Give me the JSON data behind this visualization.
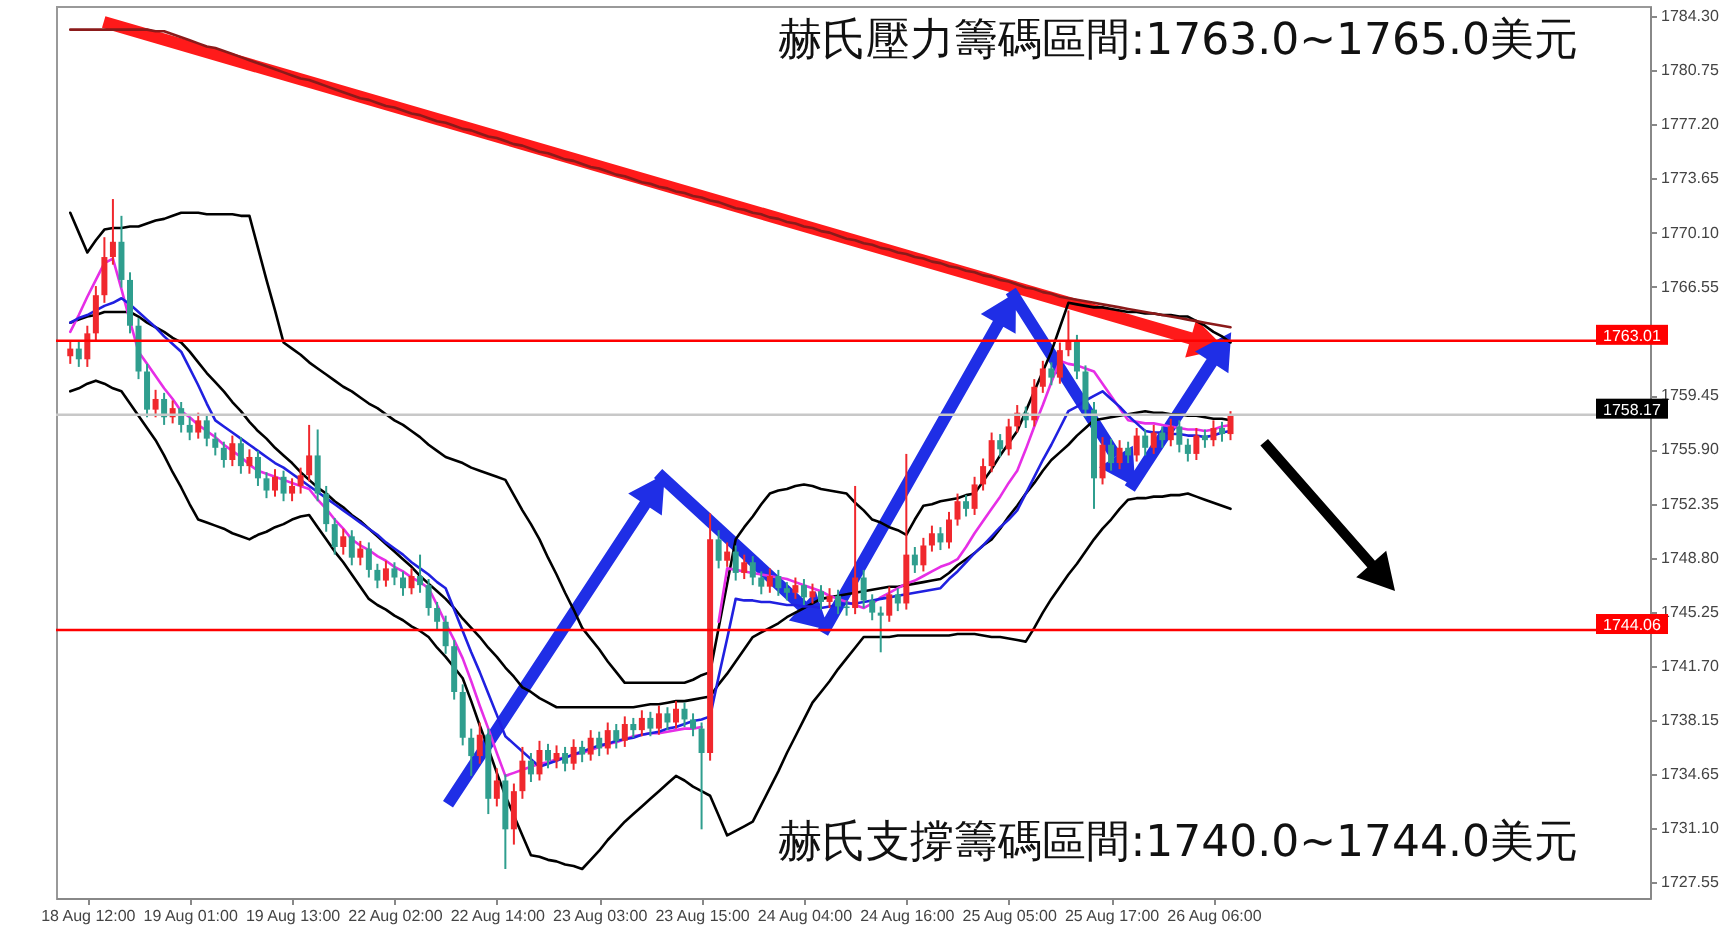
{
  "chart_data": {
    "type": "candlestick",
    "annotations": [
      "赫氏壓力籌碼區間:1763.0~1765.0美元",
      "赫氏支撐籌碼區間:1740.0~1744.0美元"
    ],
    "categories": [
      null,
      null,
      "18 Aug 12:00",
      null,
      null,
      null,
      null,
      null,
      null,
      null,
      null,
      null,
      null,
      null,
      "19 Aug 01:00",
      null,
      null,
      null,
      null,
      null,
      null,
      null,
      null,
      null,
      null,
      null,
      "19 Aug 13:00",
      null,
      null,
      null,
      null,
      null,
      null,
      null,
      null,
      null,
      null,
      null,
      "22 Aug 02:00",
      null,
      null,
      null,
      null,
      null,
      null,
      null,
      null,
      null,
      null,
      null,
      "22 Aug 14:00",
      null,
      null,
      null,
      null,
      null,
      null,
      null,
      null,
      null,
      null,
      null,
      "23 Aug 03:00",
      null,
      null,
      null,
      null,
      null,
      null,
      null,
      null,
      null,
      null,
      null,
      "23 Aug 15:00",
      null,
      null,
      null,
      null,
      null,
      null,
      null,
      null,
      null,
      null,
      null,
      "24 Aug 04:00",
      null,
      null,
      null,
      null,
      null,
      null,
      null,
      null,
      null,
      null,
      null,
      "24 Aug 16:00",
      null,
      null,
      null,
      null,
      null,
      null,
      null,
      null,
      null,
      null,
      null,
      "25 Aug 05:00",
      null,
      null,
      null,
      null,
      null,
      null,
      null,
      null,
      null,
      null,
      null,
      "25 Aug 17:00",
      null,
      null,
      null,
      null,
      null,
      null,
      null,
      null,
      null,
      null,
      null,
      "26 Aug 06:00",
      null,
      null
    ],
    "ohlc": [
      [
        1762.0,
        1763.0,
        1761.5,
        1762.5
      ],
      [
        1762.5,
        1763.0,
        1761.3,
        1761.8
      ],
      [
        1761.8,
        1764.0,
        1761.3,
        1763.5
      ],
      [
        1763.5,
        1766.6,
        1763.0,
        1766.0
      ],
      [
        1766.0,
        1769.8,
        1765.5,
        1768.5
      ],
      [
        1768.5,
        1772.3,
        1768.0,
        1769.5
      ],
      [
        1769.5,
        1771.2,
        1766.5,
        1767.0
      ],
      [
        1767.0,
        1767.5,
        1763.5,
        1764.0
      ],
      [
        1764.0,
        1764.5,
        1760.5,
        1761.0
      ],
      [
        1761.0,
        1761.5,
        1758.0,
        1758.5
      ],
      [
        1758.5,
        1759.8,
        1758.0,
        1759.2
      ],
      [
        1759.2,
        1759.6,
        1757.5,
        1758.0
      ],
      [
        1758.0,
        1759.1,
        1757.6,
        1758.6
      ],
      [
        1758.6,
        1759.0,
        1757.0,
        1757.5
      ],
      [
        1757.5,
        1758.0,
        1756.5,
        1757.0
      ],
      [
        1757.0,
        1758.3,
        1756.6,
        1757.8
      ],
      [
        1757.8,
        1758.2,
        1756.1,
        1756.6
      ],
      [
        1756.6,
        1757.0,
        1755.5,
        1756.0
      ],
      [
        1756.0,
        1756.4,
        1754.7,
        1755.2
      ],
      [
        1755.2,
        1756.8,
        1754.8,
        1756.3
      ],
      [
        1756.3,
        1756.7,
        1754.3,
        1754.8
      ],
      [
        1754.8,
        1755.9,
        1754.3,
        1755.4
      ],
      [
        1755.4,
        1755.8,
        1753.5,
        1754.0
      ],
      [
        1754.0,
        1754.4,
        1752.7,
        1753.2
      ],
      [
        1753.2,
        1754.6,
        1752.8,
        1754.1
      ],
      [
        1754.1,
        1754.5,
        1752.5,
        1753.0
      ],
      [
        1753.0,
        1754.0,
        1752.5,
        1753.5
      ],
      [
        1753.5,
        1754.7,
        1753.0,
        1754.2
      ],
      [
        1754.2,
        1757.5,
        1753.8,
        1755.5
      ],
      [
        1755.5,
        1757.2,
        1752.5,
        1753.0
      ],
      [
        1753.0,
        1753.5,
        1750.5,
        1751.0
      ],
      [
        1751.0,
        1751.4,
        1749.0,
        1749.5
      ],
      [
        1749.5,
        1750.7,
        1749.0,
        1750.2
      ],
      [
        1750.2,
        1750.6,
        1748.3,
        1748.8
      ],
      [
        1748.8,
        1749.9,
        1748.3,
        1749.4
      ],
      [
        1749.4,
        1749.8,
        1747.5,
        1748.0
      ],
      [
        1748.0,
        1748.4,
        1746.8,
        1747.3
      ],
      [
        1747.3,
        1748.6,
        1746.9,
        1748.1
      ],
      [
        1748.1,
        1748.5,
        1747.0,
        1747.5
      ],
      [
        1747.5,
        1747.9,
        1746.3,
        1746.8
      ],
      [
        1746.8,
        1748.1,
        1746.4,
        1747.6
      ],
      [
        1747.6,
        1749.0,
        1746.5,
        1747.0
      ],
      [
        1747.0,
        1747.4,
        1745.0,
        1745.5
      ],
      [
        1745.5,
        1745.9,
        1744.1,
        1744.6
      ],
      [
        1744.6,
        1745.0,
        1742.5,
        1743.0
      ],
      [
        1743.0,
        1743.4,
        1739.5,
        1740.0
      ],
      [
        1740.0,
        1740.5,
        1736.5,
        1737.0
      ],
      [
        1737.0,
        1737.6,
        1734.5,
        1735.8
      ],
      [
        1735.8,
        1738.0,
        1735.3,
        1737.2
      ],
      [
        1737.2,
        1737.6,
        1732.0,
        1733.0
      ],
      [
        1733.0,
        1735.0,
        1732.5,
        1734.2
      ],
      [
        1734.2,
        1734.6,
        1728.4,
        1731.0
      ],
      [
        1731.0,
        1734.0,
        1730.0,
        1733.5
      ],
      [
        1733.5,
        1736.4,
        1733.0,
        1735.5
      ],
      [
        1735.5,
        1736.0,
        1734.1,
        1734.6
      ],
      [
        1734.6,
        1736.8,
        1734.2,
        1736.2
      ],
      [
        1736.2,
        1736.6,
        1735.0,
        1735.5
      ],
      [
        1735.5,
        1736.5,
        1735.0,
        1736.0
      ],
      [
        1736.0,
        1736.4,
        1734.8,
        1735.3
      ],
      [
        1735.3,
        1736.9,
        1734.9,
        1736.4
      ],
      [
        1736.4,
        1736.8,
        1735.4,
        1735.9
      ],
      [
        1735.9,
        1737.5,
        1735.5,
        1737.0
      ],
      [
        1737.0,
        1737.4,
        1735.8,
        1736.3
      ],
      [
        1736.3,
        1738.0,
        1735.9,
        1737.5
      ],
      [
        1737.5,
        1737.9,
        1736.3,
        1736.8
      ],
      [
        1736.8,
        1738.4,
        1736.4,
        1737.9
      ],
      [
        1737.9,
        1738.3,
        1737.0,
        1737.5
      ],
      [
        1737.5,
        1738.8,
        1737.1,
        1738.3
      ],
      [
        1738.3,
        1738.7,
        1737.1,
        1737.6
      ],
      [
        1737.6,
        1739.1,
        1737.2,
        1738.6
      ],
      [
        1738.6,
        1739.0,
        1737.5,
        1738.0
      ],
      [
        1738.0,
        1739.4,
        1737.6,
        1738.9
      ],
      [
        1738.9,
        1739.3,
        1737.7,
        1738.2
      ],
      [
        1738.2,
        1738.6,
        1737.1,
        1737.6
      ],
      [
        1737.6,
        1738.0,
        1731.0,
        1736.0
      ],
      [
        1736.0,
        1751.7,
        1735.5,
        1750.0
      ],
      [
        1750.0,
        1750.6,
        1748.1,
        1748.6
      ],
      [
        1748.6,
        1749.8,
        1748.2,
        1749.2
      ],
      [
        1749.2,
        1749.6,
        1747.3,
        1747.8
      ],
      [
        1747.8,
        1749.0,
        1747.4,
        1748.5
      ],
      [
        1748.5,
        1748.9,
        1747.0,
        1747.5
      ],
      [
        1747.5,
        1747.9,
        1746.4,
        1746.9
      ],
      [
        1746.9,
        1748.1,
        1746.5,
        1747.6
      ],
      [
        1747.6,
        1748.0,
        1746.3,
        1746.8
      ],
      [
        1746.8,
        1747.2,
        1746.0,
        1746.5
      ],
      [
        1746.5,
        1747.5,
        1746.1,
        1747.0
      ],
      [
        1747.0,
        1747.4,
        1745.7,
        1746.2
      ],
      [
        1746.2,
        1747.1,
        1745.8,
        1746.6
      ],
      [
        1746.6,
        1747.0,
        1745.4,
        1745.9
      ],
      [
        1745.9,
        1746.8,
        1745.5,
        1746.3
      ],
      [
        1746.3,
        1746.7,
        1745.1,
        1745.6
      ],
      [
        1745.6,
        1746.0,
        1745.0,
        1745.5
      ],
      [
        1745.5,
        1753.5,
        1745.1,
        1747.5
      ],
      [
        1747.5,
        1748.0,
        1745.5,
        1746.0
      ],
      [
        1746.0,
        1746.4,
        1744.7,
        1745.2
      ],
      [
        1745.2,
        1745.6,
        1742.6,
        1745.0
      ],
      [
        1745.0,
        1746.9,
        1744.6,
        1746.4
      ],
      [
        1746.4,
        1746.8,
        1745.3,
        1745.8
      ],
      [
        1745.8,
        1755.6,
        1745.4,
        1749.0
      ],
      [
        1749.0,
        1749.5,
        1747.8,
        1748.3
      ],
      [
        1748.3,
        1750.1,
        1747.9,
        1749.6
      ],
      [
        1749.6,
        1750.9,
        1749.2,
        1750.4
      ],
      [
        1750.4,
        1750.8,
        1749.3,
        1749.8
      ],
      [
        1749.8,
        1751.8,
        1749.4,
        1751.3
      ],
      [
        1751.3,
        1753.0,
        1750.9,
        1752.5
      ],
      [
        1752.5,
        1752.9,
        1751.5,
        1752.0
      ],
      [
        1752.0,
        1754.1,
        1751.6,
        1753.6
      ],
      [
        1753.6,
        1755.3,
        1753.2,
        1754.8
      ],
      [
        1754.8,
        1757.0,
        1754.4,
        1756.5
      ],
      [
        1756.5,
        1756.9,
        1755.4,
        1755.9
      ],
      [
        1755.9,
        1757.9,
        1755.5,
        1757.4
      ],
      [
        1757.4,
        1758.8,
        1757.0,
        1758.3
      ],
      [
        1758.3,
        1758.7,
        1757.3,
        1757.8
      ],
      [
        1757.8,
        1760.5,
        1757.4,
        1760.0
      ],
      [
        1760.0,
        1761.7,
        1759.6,
        1761.2
      ],
      [
        1761.2,
        1761.6,
        1760.1,
        1760.6
      ],
      [
        1760.6,
        1762.9,
        1760.2,
        1762.4
      ],
      [
        1762.4,
        1765.0,
        1762.0,
        1763.0
      ],
      [
        1763.0,
        1763.4,
        1760.5,
        1761.0
      ],
      [
        1761.0,
        1761.4,
        1758.0,
        1758.5
      ],
      [
        1758.5,
        1759.0,
        1752.0,
        1754.0
      ],
      [
        1754.0,
        1756.7,
        1753.6,
        1756.2
      ],
      [
        1756.2,
        1756.6,
        1754.5,
        1755.0
      ],
      [
        1755.0,
        1756.5,
        1754.6,
        1756.0
      ],
      [
        1756.0,
        1756.4,
        1755.0,
        1755.5
      ],
      [
        1755.5,
        1757.3,
        1755.1,
        1756.8
      ],
      [
        1756.8,
        1757.2,
        1755.5,
        1756.0
      ],
      [
        1756.0,
        1757.5,
        1755.6,
        1757.0
      ],
      [
        1757.0,
        1757.4,
        1756.0,
        1756.5
      ],
      [
        1756.5,
        1757.9,
        1756.1,
        1757.4
      ],
      [
        1757.4,
        1757.8,
        1755.7,
        1756.2
      ],
      [
        1756.2,
        1756.6,
        1755.1,
        1755.6
      ],
      [
        1755.6,
        1757.3,
        1755.2,
        1756.8
      ],
      [
        1756.8,
        1757.2,
        1756.0,
        1756.5
      ],
      [
        1756.5,
        1757.8,
        1756.1,
        1757.3
      ],
      [
        1757.3,
        1757.7,
        1756.4,
        1756.9
      ],
      [
        1756.9,
        1758.4,
        1756.5,
        1758.2
      ]
    ],
    "colors": [
      "#f0282d",
      "#2f9e8e",
      "#f0282d",
      "#f0282d",
      "#f0282d",
      "#f0282d",
      "#2f9e8e",
      "#2f9e8e",
      "#2f9e8e",
      "#2f9e8e",
      "#f0282d",
      "#2f9e8e",
      "#f0282d",
      "#2f9e8e",
      "#2f9e8e",
      "#f0282d",
      "#2f9e8e",
      "#2f9e8e",
      "#2f9e8e",
      "#f0282d",
      "#2f9e8e",
      "#f0282d",
      "#2f9e8e",
      "#2f9e8e",
      "#f0282d",
      "#2f9e8e",
      "#f0282d",
      "#f0282d",
      "#f0282d",
      "#2f9e8e",
      "#2f9e8e",
      "#2f9e8e",
      "#f0282d",
      "#2f9e8e",
      "#f0282d",
      "#2f9e8e",
      "#2f9e8e",
      "#f0282d",
      "#2f9e8e",
      "#2f9e8e",
      "#f0282d",
      "#2f9e8e",
      "#2f9e8e",
      "#2f9e8e",
      "#2f9e8e",
      "#2f9e8e",
      "#2f9e8e",
      "#2f9e8e",
      "#f0282d",
      "#2f9e8e",
      "#f0282d",
      "#2f9e8e",
      "#f0282d",
      "#f0282d",
      "#2f9e8e",
      "#f0282d",
      "#2f9e8e",
      "#f0282d",
      "#2f9e8e",
      "#f0282d",
      "#2f9e8e",
      "#f0282d",
      "#2f9e8e",
      "#f0282d",
      "#2f9e8e",
      "#f0282d",
      "#2f9e8e",
      "#f0282d",
      "#2f9e8e",
      "#f0282d",
      "#2f9e8e",
      "#f0282d",
      "#2f9e8e",
      "#2f9e8e",
      "#2f9e8e",
      "#f0282d",
      "#2f9e8e",
      "#f0282d",
      "#2f9e8e",
      "#f0282d",
      "#2f9e8e",
      "#2f9e8e",
      "#f0282d",
      "#2f9e8e",
      "#2f9e8e",
      "#f0282d",
      "#2f9e8e",
      "#f0282d",
      "#2f9e8e",
      "#f0282d",
      "#2f9e8e",
      "#2f9e8e",
      "#f0282d",
      "#2f9e8e",
      "#2f9e8e",
      "#2f9e8e",
      "#f0282d",
      "#2f9e8e",
      "#f0282d",
      "#2f9e8e",
      "#f0282d",
      "#f0282d",
      "#2f9e8e",
      "#f0282d",
      "#f0282d",
      "#2f9e8e",
      "#f0282d",
      "#f0282d",
      "#f0282d",
      "#2f9e8e",
      "#f0282d",
      "#f0282d",
      "#2f9e8e",
      "#f0282d",
      "#f0282d",
      "#2f9e8e",
      "#f0282d",
      "#f0282d",
      "#2f9e8e",
      "#2f9e8e",
      "#2f9e8e",
      "#f0282d",
      "#2f9e8e",
      "#f0282d",
      "#2f9e8e",
      "#f0282d",
      "#2f9e8e",
      "#f0282d",
      "#2f9e8e",
      "#f0282d",
      "#2f9e8e",
      "#2f9e8e",
      "#f0282d",
      "#2f9e8e",
      "#f0282d",
      "#2f9e8e",
      "#f0282d"
    ],
    "series": [
      {
        "type": "line",
        "color": "#000000",
        "values": [
          1771.4,
          1770.1,
          1768.8,
          1769.6,
          1770.3,
          1770.4,
          1770.4,
          1770.5,
          1770.5,
          1770.7,
          1770.9,
          1771.0,
          1771.2,
          1771.4,
          1771.4,
          1771.4,
          1771.3,
          1771.3,
          1771.3,
          1771.3,
          1771.2,
          1771.2,
          1769.1,
          1767.0,
          1765.0,
          1762.9,
          1762.5,
          1762.1,
          1761.6,
          1761.2,
          1760.8,
          1760.4,
          1760.0,
          1759.7,
          1759.3,
          1758.9,
          1758.6,
          1758.2,
          1757.8,
          1757.5,
          1757.1,
          1756.7,
          1756.2,
          1755.8,
          1755.4,
          1755.2,
          1755.0,
          1754.7,
          1754.5,
          1754.3,
          1754.1,
          1753.9,
          1752.9,
          1751.9,
          1751.0,
          1750.0,
          1748.8,
          1747.7,
          1746.5,
          1745.4,
          1744.2,
          1743.5,
          1742.8,
          1742.0,
          1741.3,
          1740.6,
          1740.6,
          1740.6,
          1740.6,
          1740.6,
          1740.6,
          1740.6,
          1740.6,
          1740.8,
          1741.1,
          1741.3,
          1744.2,
          1747.1,
          1750.0,
          1750.8,
          1751.5,
          1752.3,
          1753.0,
          1753.2,
          1753.3,
          1753.5,
          1753.6,
          1753.5,
          1753.3,
          1753.2,
          1753.1,
          1753.0,
          1752.4,
          1751.9,
          1751.3,
          1751.1,
          1750.8,
          1750.6,
          1750.3,
          1751.3,
          1752.2,
          1752.3,
          1752.5,
          1752.6,
          1752.7,
          1752.9,
          1753.0,
          1753.8,
          1754.6,
          1755.5,
          1756.3,
          1757.1,
          1758.4,
          1759.7,
          1761.0,
          1762.3,
          1763.9,
          1765.5,
          1765.4,
          1765.3,
          1765.2,
          1765.2,
          1765.1,
          1765.0,
          1764.9,
          1764.9,
          1764.8,
          1764.8,
          1764.7,
          1764.7,
          1764.6,
          1764.6,
          1764.3,
          1764.0,
          1763.6,
          1763.3,
          1762.9
        ]
      },
      {
        "type": "line",
        "color": "#000000",
        "values": [
          1764.2,
          1764.4,
          1764.6,
          1764.7,
          1764.9,
          1764.9,
          1764.9,
          1764.9,
          1764.6,
          1764.2,
          1763.9,
          1763.6,
          1763.2,
          1762.9,
          1762.3,
          1761.6,
          1760.9,
          1760.3,
          1759.7,
          1759.0,
          1758.4,
          1757.7,
          1757.1,
          1756.6,
          1756.0,
          1755.5,
          1755.0,
          1754.4,
          1753.9,
          1753.4,
          1753.0,
          1752.5,
          1752.1,
          1751.6,
          1751.2,
          1750.7,
          1750.2,
          1749.7,
          1749.2,
          1748.7,
          1748.2,
          1747.6,
          1747.1,
          1746.6,
          1746.1,
          1745.5,
          1744.8,
          1744.2,
          1743.6,
          1742.9,
          1742.3,
          1741.6,
          1741.0,
          1740.3,
          1740.0,
          1739.6,
          1739.3,
          1739.0,
          1739.0,
          1739.0,
          1739.0,
          1739.0,
          1739.0,
          1739.0,
          1739.0,
          1739.0,
          1739.0,
          1739.1,
          1739.2,
          1739.2,
          1739.3,
          1739.4,
          1739.4,
          1739.5,
          1739.6,
          1739.7,
          1740.5,
          1741.2,
          1742.0,
          1742.8,
          1743.6,
          1743.9,
          1744.2,
          1744.5,
          1744.9,
          1745.2,
          1745.5,
          1745.8,
          1746.1,
          1746.2,
          1746.3,
          1746.4,
          1746.5,
          1746.6,
          1746.7,
          1746.8,
          1746.9,
          1746.9,
          1747.0,
          1747.1,
          1747.2,
          1747.3,
          1747.4,
          1747.8,
          1748.3,
          1748.7,
          1749.1,
          1749.6,
          1750.0,
          1750.7,
          1751.5,
          1752.2,
          1753.0,
          1753.7,
          1754.5,
          1755.2,
          1755.7,
          1756.2,
          1756.8,
          1757.3,
          1757.8,
          1757.9,
          1758.0,
          1758.1,
          1758.2,
          1758.3,
          1758.4,
          1758.3,
          1758.3,
          1758.2,
          1758.2,
          1758.1,
          1758.1,
          1758.0,
          1757.9,
          1757.9,
          1757.8
        ]
      },
      {
        "type": "line",
        "color": "#000000",
        "values": [
          1759.7,
          1759.9,
          1760.2,
          1760.4,
          1760.2,
          1759.9,
          1759.7,
          1758.9,
          1758.1,
          1757.3,
          1756.5,
          1755.5,
          1754.4,
          1753.4,
          1752.3,
          1751.3,
          1751.1,
          1750.9,
          1750.7,
          1750.4,
          1750.2,
          1750.0,
          1750.3,
          1750.5,
          1750.8,
          1751.0,
          1751.3,
          1751.5,
          1751.6,
          1750.8,
          1750.0,
          1749.2,
          1748.5,
          1747.7,
          1746.9,
          1746.1,
          1745.7,
          1745.4,
          1745.0,
          1744.7,
          1744.3,
          1744.0,
          1743.6,
          1742.9,
          1742.3,
          1741.6,
          1740.9,
          1739.4,
          1737.8,
          1736.3,
          1734.7,
          1733.2,
          1731.9,
          1730.6,
          1729.3,
          1729.2,
          1729.0,
          1728.9,
          1728.7,
          1728.6,
          1728.4,
          1729.0,
          1729.6,
          1730.3,
          1730.9,
          1731.5,
          1732.0,
          1732.5,
          1733.0,
          1733.5,
          1734.0,
          1734.5,
          1734.2,
          1733.8,
          1733.5,
          1733.2,
          1731.9,
          1730.6,
          1730.9,
          1731.2,
          1731.5,
          1732.6,
          1733.7,
          1734.8,
          1736.0,
          1737.1,
          1738.2,
          1739.3,
          1740.0,
          1740.7,
          1741.5,
          1742.2,
          1742.9,
          1743.6,
          1743.6,
          1743.6,
          1743.6,
          1743.7,
          1743.7,
          1743.7,
          1743.7,
          1743.7,
          1743.7,
          1743.7,
          1743.8,
          1743.8,
          1743.8,
          1743.7,
          1743.6,
          1743.6,
          1743.5,
          1743.4,
          1743.3,
          1744.2,
          1745.2,
          1746.1,
          1746.9,
          1747.7,
          1748.4,
          1749.2,
          1750.0,
          1750.7,
          1751.3,
          1752.0,
          1752.6,
          1752.7,
          1752.7,
          1752.8,
          1752.8,
          1752.9,
          1752.9,
          1753.0,
          1752.8,
          1752.6,
          1752.4,
          1752.2,
          1752.0
        ]
      },
      {
        "type": "line",
        "color": "#e62ee6",
        "values": [
          1763.6,
          1764.7,
          1765.9,
          1767.0,
          1768.1,
          1768.4,
          1766.4,
          1764.3,
          1762.3,
          1761.5,
          1760.7,
          1759.9,
          1759.2,
          1758.4,
          1758.0,
          1757.5,
          1757.1,
          1756.7,
          1756.2,
          1755.8,
          1755.4,
          1754.9,
          1754.5,
          1754.3,
          1754.1,
          1753.9,
          1753.7,
          1753.5,
          1753.3,
          1752.6,
          1752.0,
          1751.3,
          1750.7,
          1750.0,
          1749.6,
          1749.3,
          1748.9,
          1748.6,
          1748.2,
          1747.9,
          1747.5,
          1747.2,
          1746.8,
          1745.7,
          1744.5,
          1743.4,
          1742.2,
          1740.7,
          1739.1,
          1737.6,
          1736.0,
          1734.5,
          1734.7,
          1734.9,
          1735.1,
          1735.3,
          1735.4,
          1735.6,
          1735.7,
          1735.9,
          1736.0,
          1736.2,
          1736.4,
          1736.6,
          1736.7,
          1736.9,
          1737.1,
          1737.2,
          1737.3,
          1737.3,
          1737.4,
          1737.5,
          1737.6,
          1737.6,
          1737.7,
          null,
          1744.6,
          1748.1,
          1748.0,
          1747.9,
          1747.8,
          1747.7,
          1747.6,
          1747.5,
          1747.4,
          1747.2,
          1747.0,
          1746.8,
          1746.6,
          1746.3,
          1746.1,
          1745.9,
          1745.7,
          1745.5,
          1745.8,
          1746.2,
          1746.5,
          1746.8,
          1747.1,
          1747.3,
          1747.6,
          1747.9,
          1748.2,
          1748.4,
          1748.7,
          1749.5,
          1750.4,
          1751.2,
          1752.0,
          1752.8,
          1753.7,
          1754.5,
          1755.9,
          1757.4,
          1758.8,
          1760.3,
          1761.7,
          1761.5,
          1761.4,
          1761.2,
          1761.0,
          1760.2,
          1759.4,
          1758.6,
          1757.8,
          1757.7,
          1757.6,
          1757.6,
          1757.5,
          1757.4,
          1757.3,
          1757.2,
          1757.2,
          1757.1,
          1757.2,
          1757.4,
          1757.5
        ]
      },
      {
        "type": "line",
        "color": "#2020e0",
        "values": [
          1764.2,
          1764.5,
          1764.7,
          1765.0,
          1765.3,
          1765.5,
          1765.8,
          1765.4,
          1764.9,
          1764.4,
          1763.9,
          1763.3,
          1762.8,
          1762.3,
          1761.2,
          1760.1,
          1758.9,
          1757.8,
          1757.4,
          1757.0,
          1756.6,
          1756.2,
          1755.8,
          1755.4,
          1755.0,
          1754.7,
          1754.3,
          1753.9,
          1753.5,
          1753.1,
          1752.7,
          1752.3,
          1751.9,
          1751.5,
          1751.1,
          1750.7,
          1750.3,
          1749.8,
          1749.4,
          1749.0,
          1748.5,
          1748.1,
          1747.7,
          1747.2,
          1746.8,
          1745.4,
          1744.0,
          1742.6,
          1741.3,
          1739.9,
          1738.5,
          1737.1,
          1736.6,
          1736.1,
          1735.6,
          1735.1,
          1735.3,
          1735.5,
          1735.7,
          1735.9,
          1736.1,
          1736.3,
          1736.5,
          1736.6,
          1736.8,
          1736.9,
          1737.0,
          1737.2,
          1737.3,
          1737.4,
          1737.6,
          1737.7,
          1737.9,
          1738.1,
          1738.2,
          1738.4,
          1741.0,
          1743.5,
          1746.1,
          1746.0,
          1746.0,
          1745.9,
          1745.9,
          1745.8,
          1745.7,
          1745.7,
          1745.6,
          1745.6,
          1745.5,
          1745.6,
          1745.7,
          1745.8,
          1745.8,
          1745.9,
          1746.0,
          1746.1,
          1746.2,
          1746.3,
          1746.4,
          1746.5,
          1746.6,
          1746.7,
          1746.8,
          1747.4,
          1747.9,
          1748.5,
          1749.1,
          1749.6,
          1750.2,
          1750.8,
          1751.3,
          1751.9,
          1753.0,
          1754.1,
          1755.2,
          1756.2,
          1757.3,
          1758.4,
          1758.7,
          1759.1,
          1759.4,
          1759.7,
          1759.2,
          1758.7,
          1758.1,
          1757.6,
          1757.1,
          1757.0,
          1757.0,
          1756.9,
          1756.9,
          1756.8,
          1756.8,
          1756.7,
          1756.8,
          1757.0,
          1757.1
        ]
      },
      {
        "type": "line",
        "color": "#8b1a1a",
        "values": [
          1783.4,
          1783.4,
          1783.4,
          1783.4,
          1783.4,
          1783.4,
          1783.4,
          1783.4,
          1783.4,
          1783.4,
          1783.3,
          1783.3,
          1783.1,
          1782.9,
          1782.7,
          1782.5,
          1782.3,
          1782.2,
          1782.0,
          1781.8,
          1781.6,
          1781.4,
          1781.2,
          1781.0,
          1780.8,
          1780.6,
          1780.4,
          1780.2,
          1780.1,
          1779.9,
          1779.7,
          1779.5,
          1779.3,
          1779.1,
          1778.9,
          1778.8,
          1778.6,
          1778.4,
          1778.3,
          1778.1,
          1777.9,
          1777.8,
          1777.6,
          1777.4,
          1777.3,
          1777.1,
          1776.9,
          1776.8,
          1776.6,
          1776.4,
          1776.3,
          1776.1,
          1775.9,
          1775.8,
          1775.6,
          1775.4,
          1775.3,
          1775.1,
          1774.9,
          1774.8,
          1774.6,
          1774.4,
          1774.3,
          1774.1,
          1773.9,
          1773.8,
          1773.6,
          1773.4,
          1773.3,
          1773.1,
          1773.0,
          1772.8,
          1772.7,
          1772.5,
          1772.4,
          1772.2,
          1772.1,
          1771.9,
          1771.7,
          1771.6,
          1771.4,
          1771.3,
          1771.1,
          1771.0,
          1770.8,
          1770.7,
          1770.5,
          1770.4,
          1770.2,
          1770.1,
          1769.9,
          1769.7,
          1769.6,
          1769.4,
          1769.3,
          1769.1,
          1769.0,
          1768.8,
          1768.7,
          1768.5,
          1768.4,
          1768.2,
          1768.1,
          1767.9,
          1767.8,
          1767.6,
          1767.5,
          1767.3,
          1767.2,
          1767.0,
          1766.9,
          1766.7,
          1766.5,
          1766.4,
          1766.2,
          1766.1,
          1765.9,
          1765.8,
          1765.7,
          1765.6,
          1765.5,
          1765.4,
          1765.3,
          1765.2,
          1765.1,
          1765.0,
          1764.9,
          1764.8,
          1764.7,
          1764.6,
          1764.5,
          1764.4,
          1764.3,
          1764.2,
          1764.1,
          1764.0,
          1763.9
        ]
      }
    ],
    "ylim": [
      1726.5,
      1784.95
    ],
    "yticks": [
      {
        "value": 1784.3,
        "label": "1784.30"
      },
      1780.75,
      {
        "value": 1777.2,
        "label": "1777.20"
      },
      1773.65,
      {
        "value": 1770.1,
        "label": "1770.10"
      },
      1766.55,
      1759.45,
      {
        "value": 1755.9,
        "label": "1755.90"
      },
      1752.35,
      {
        "value": 1748.8,
        "label": "1748.80"
      },
      1745.25,
      {
        "value": 1741.7,
        "label": "1741.70"
      },
      1738.15,
      1734.65,
      {
        "value": 1731.1,
        "label": "1731.10"
      },
      1727.55
    ],
    "ref_lines": [
      {
        "axis": "y",
        "value": 1763.01,
        "label": "1763.01",
        "color": "#ff0000"
      },
      {
        "axis": "y",
        "value": 1758.17,
        "label": "1758.17",
        "color": "#c8c8c8"
      },
      {
        "axis": "y",
        "value": 1744.06,
        "label": "1744.06",
        "color": "#ff0000"
      }
    ]
  }
}
